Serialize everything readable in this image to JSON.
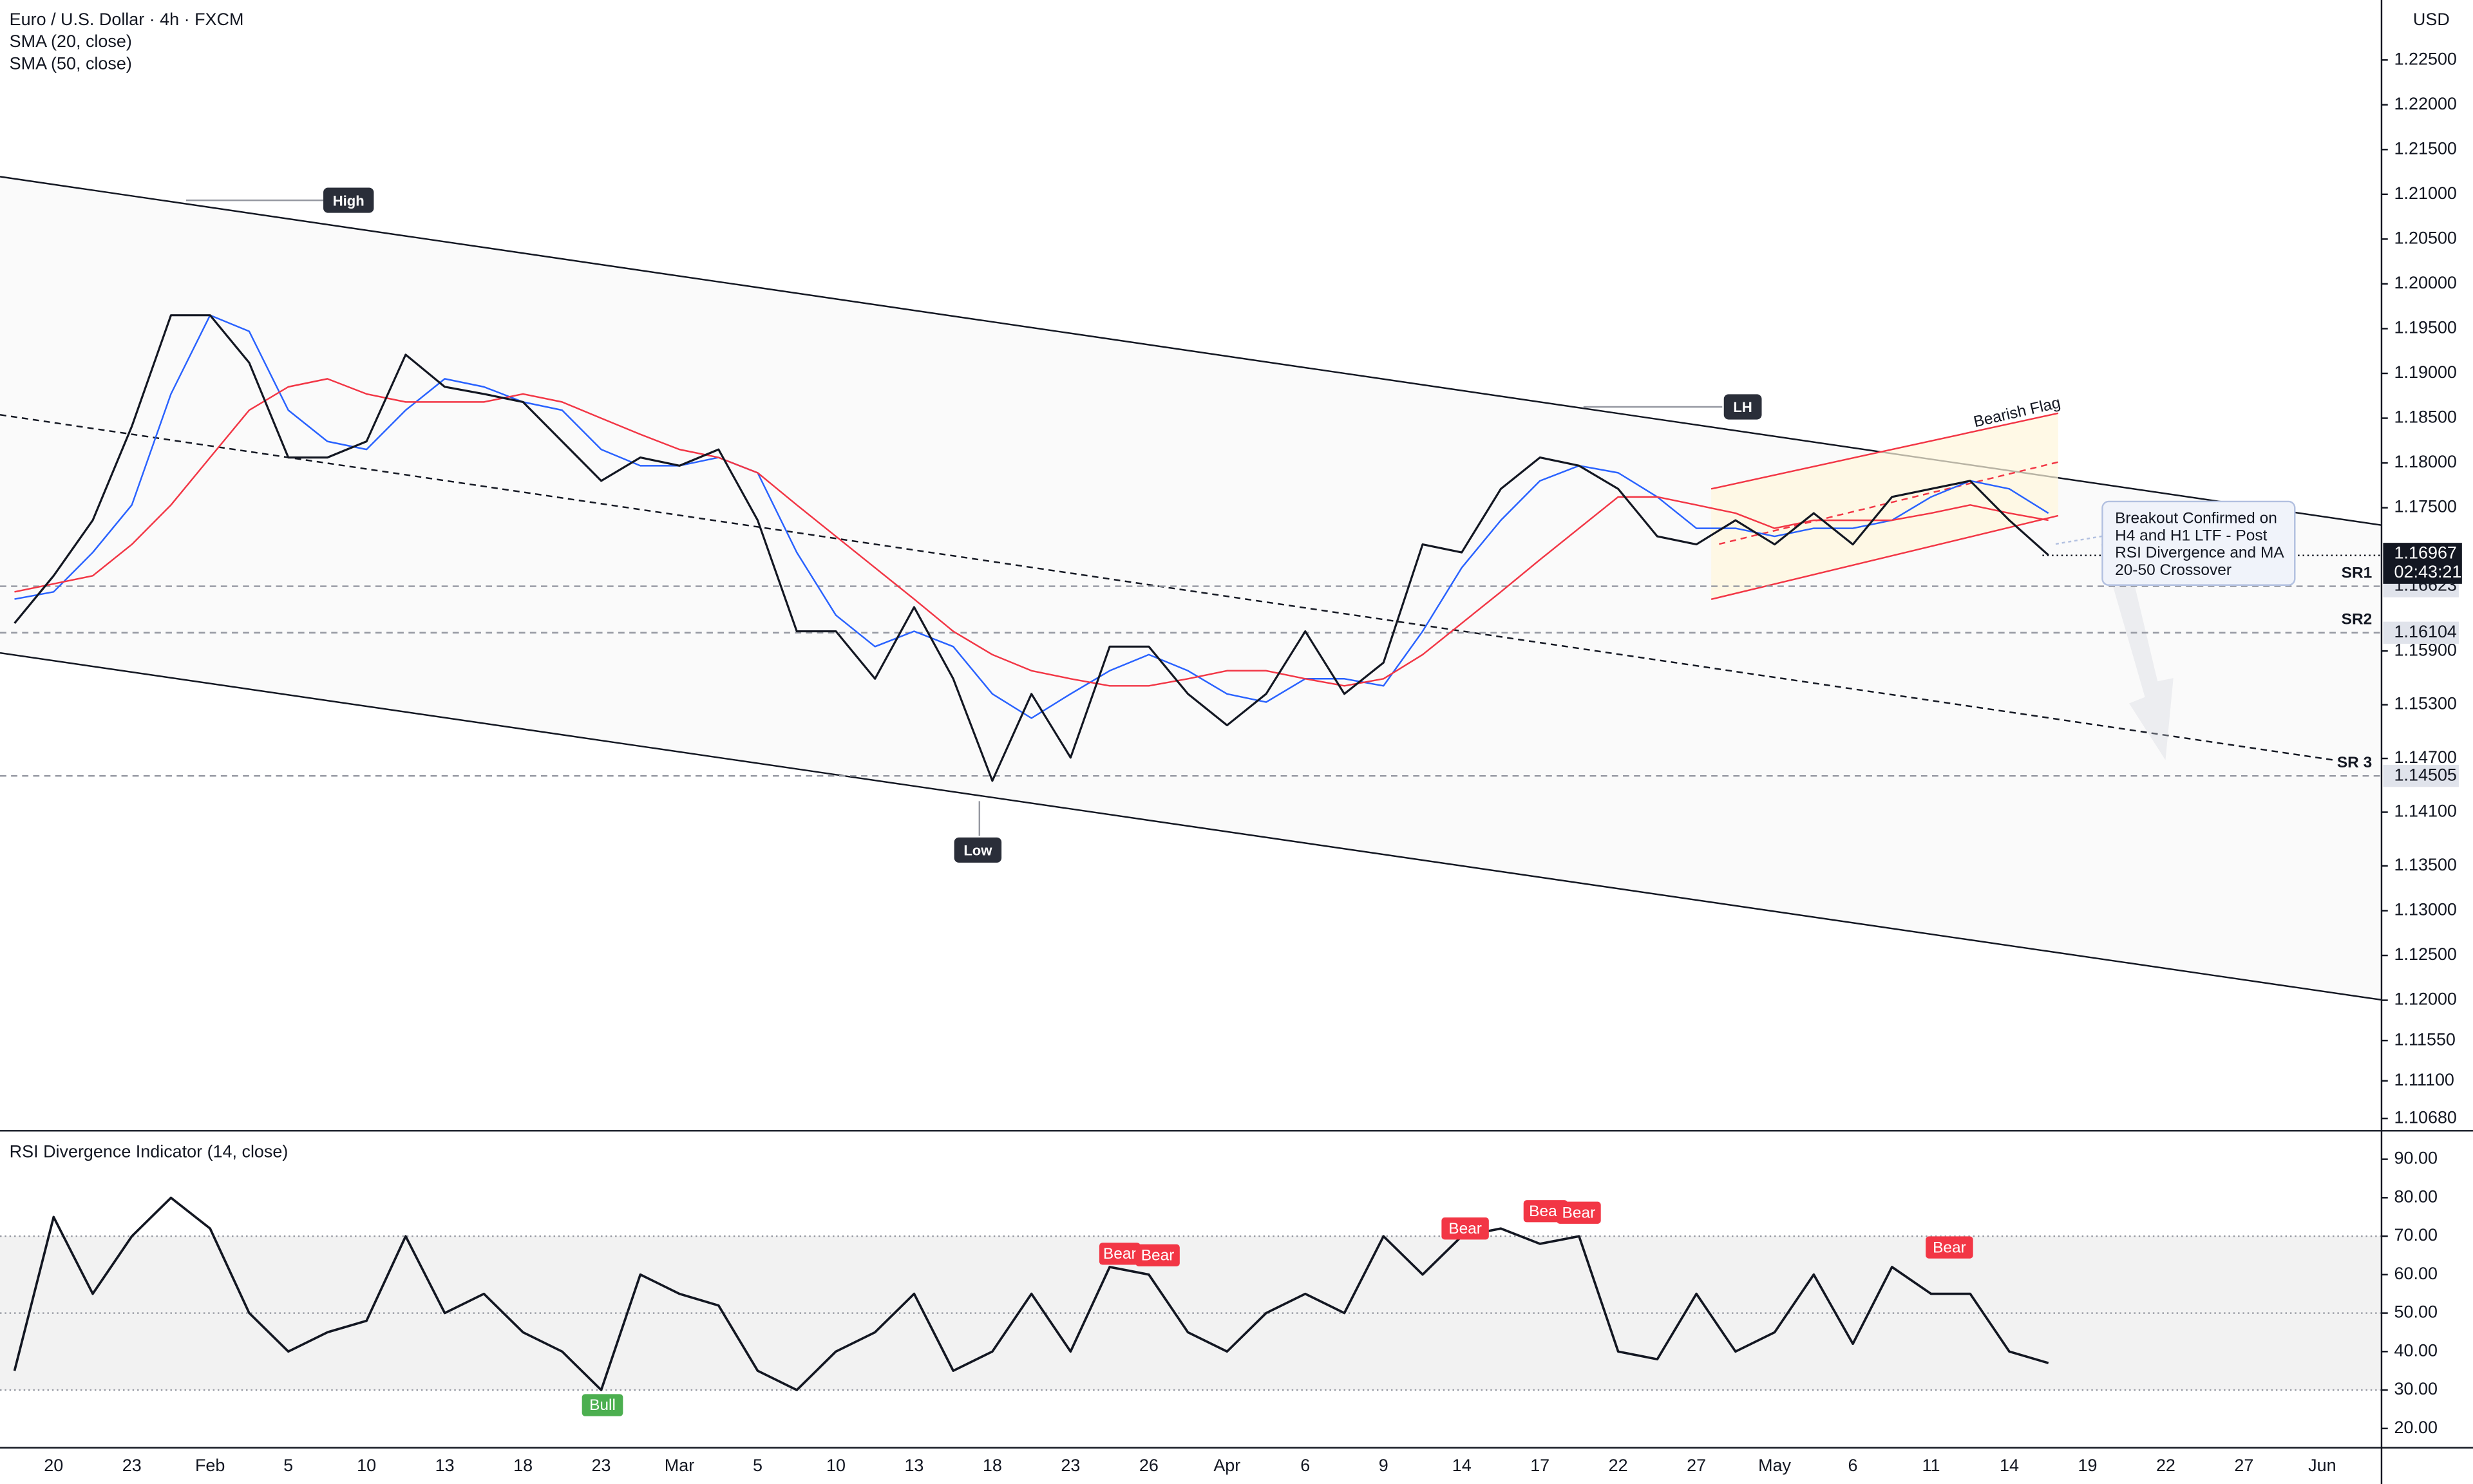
{
  "chart_data": {
    "type": "line",
    "currency": "USD",
    "categories": [
      null,
      "20",
      null,
      "23",
      null,
      "Feb",
      null,
      "5",
      null,
      "10",
      null,
      "13",
      null,
      "18",
      null,
      "23",
      null,
      "Mar",
      null,
      "5",
      null,
      "10",
      null,
      "13",
      null,
      "18",
      null,
      "23",
      null,
      "26",
      null,
      "Apr",
      null,
      "6",
      null,
      "9",
      null,
      "14",
      null,
      "17",
      null,
      "22",
      null,
      "27",
      null,
      "May",
      null,
      "6",
      null,
      "11",
      null,
      "14",
      null,
      "19",
      null,
      "22",
      null,
      "27",
      null,
      "Jun"
    ],
    "series": [
      {
        "name": "Euro / U.S. Dollar · 4h · FXCM",
        "color": "#131722",
        "values": [
          1.1621,
          1.1674,
          1.1736,
          1.1841,
          1.1965,
          1.1965,
          1.1912,
          1.1806,
          1.1806,
          1.1824,
          1.1921,
          1.1885,
          1.1877,
          1.1868,
          1.1824,
          1.178,
          1.1806,
          1.1797,
          1.1815,
          1.1736,
          1.1612,
          1.1612,
          1.1559,
          1.1639,
          1.1559,
          1.1445,
          1.1542,
          1.1471,
          1.1595,
          1.1595,
          1.1542,
          1.1507,
          1.1542,
          1.1612,
          1.1542,
          1.1577,
          1.1709,
          1.17,
          1.1771,
          1.1806,
          1.1797,
          1.1771,
          1.1718,
          1.1709,
          1.1736,
          1.1709,
          1.1744,
          1.1709,
          1.1762,
          1.1771,
          1.178,
          1.1736,
          1.1697,
          null,
          null,
          null,
          null,
          null,
          null,
          null
        ]
      },
      {
        "name": "SMA (20, close)",
        "color": "#2962ff",
        "values": [
          1.1648,
          1.1656,
          1.17,
          1.1753,
          1.1877,
          1.1965,
          1.1947,
          1.1859,
          1.1824,
          1.1815,
          1.1859,
          1.1894,
          1.1885,
          1.1868,
          1.1859,
          1.1815,
          1.1797,
          1.1797,
          1.1806,
          1.1789,
          1.17,
          1.163,
          1.1595,
          1.1612,
          1.1595,
          1.1542,
          1.1515,
          1.1542,
          1.1568,
          1.1586,
          1.1568,
          1.1542,
          1.1533,
          1.1559,
          1.1559,
          1.1551,
          1.1612,
          1.1683,
          1.1736,
          1.178,
          1.1797,
          1.1789,
          1.1762,
          1.1727,
          1.1727,
          1.1718,
          1.1727,
          1.1727,
          1.1736,
          1.1762,
          1.178,
          1.1771,
          1.1744,
          null,
          null,
          null,
          null,
          null,
          null,
          null
        ]
      },
      {
        "name": "SMA (50, close)",
        "color": "#f23645",
        "values": [
          1.1656,
          1.1665,
          1.1674,
          1.1709,
          1.1753,
          1.1806,
          1.1859,
          1.1885,
          1.1894,
          1.1877,
          1.1868,
          1.1868,
          1.1868,
          1.1877,
          1.1868,
          1.185,
          1.1832,
          1.1815,
          1.1806,
          1.1789,
          1.1753,
          1.1718,
          1.1683,
          1.1648,
          1.1612,
          1.1586,
          1.1568,
          1.1559,
          1.1551,
          1.1551,
          1.1559,
          1.1568,
          1.1568,
          1.1559,
          1.1551,
          1.1559,
          1.1586,
          1.1621,
          1.1656,
          1.1692,
          1.1727,
          1.1762,
          1.1762,
          1.1753,
          1.1744,
          1.1727,
          1.1736,
          1.1736,
          1.1736,
          1.1744,
          1.1753,
          1.1744,
          1.1736,
          null,
          null,
          null,
          null,
          null,
          null,
          null
        ]
      }
    ],
    "ylim": [
      1.1056,
      1.2317
    ],
    "yticks": [
      {
        "value": 1.225,
        "label": "1.22500"
      },
      {
        "value": 1.22,
        "label": "1.22000"
      },
      {
        "value": 1.215,
        "label": "1.21500"
      },
      {
        "value": 1.21,
        "label": "1.21000"
      },
      {
        "value": 1.205,
        "label": "1.20500"
      },
      {
        "value": 1.2,
        "label": "1.20000"
      },
      {
        "value": 1.195,
        "label": "1.19500"
      },
      {
        "value": 1.19,
        "label": "1.19000"
      },
      {
        "value": 1.185,
        "label": "1.18500"
      },
      {
        "value": 1.18,
        "label": "1.18000"
      },
      {
        "value": 1.175,
        "label": "1.17500"
      },
      {
        "value": 1.159,
        "label": "1.15900"
      },
      {
        "value": 1.153,
        "label": "1.15300"
      },
      {
        "value": 1.147,
        "label": "1.14700"
      },
      {
        "value": 1.141,
        "label": "1.14100"
      },
      {
        "value": 1.135,
        "label": "1.13500"
      },
      {
        "value": 1.13,
        "label": "1.13000"
      },
      {
        "value": 1.125,
        "label": "1.12500"
      },
      {
        "value": 1.12,
        "label": "1.12000"
      },
      {
        "value": 1.1155,
        "label": "1.11550"
      },
      {
        "value": 1.111,
        "label": "1.11100"
      },
      {
        "value": 1.1068,
        "label": "1.10680"
      }
    ],
    "last": {
      "value": 1.16967,
      "label": "1.16967",
      "countdown": "02:43:21"
    },
    "levels": [
      {
        "name": "SR1",
        "value": 1.16623,
        "label": "1.16623"
      },
      {
        "name": "SR2",
        "value": 1.16104,
        "label": "1.16104"
      },
      {
        "name": "SR 3",
        "value": 1.14505,
        "label": "1.14505"
      }
    ],
    "annotations": {
      "high": "High",
      "lh": "LH",
      "low": "Low",
      "flag": "Bearish Flag",
      "note": [
        "Breakout Confirmed on",
        "H4 and H1 LTF - Post",
        "RSI Divergence and MA",
        "20-50 Crossover"
      ]
    },
    "indicator": {
      "type": "line",
      "series": [
        {
          "name": "RSI Divergence Indicator (14, close)",
          "color": "#131722",
          "values": [
            35,
            75,
            55,
            70,
            80,
            72,
            50,
            40,
            45,
            48,
            70,
            50,
            55,
            45,
            40,
            30,
            60,
            55,
            52,
            35,
            30,
            40,
            45,
            55,
            35,
            40,
            55,
            40,
            62,
            60,
            45,
            40,
            50,
            55,
            50,
            70,
            60,
            70,
            72,
            68,
            70,
            40,
            38,
            55,
            40,
            45,
            60,
            42,
            62,
            55,
            55,
            40,
            37,
            null,
            null,
            null,
            null,
            null,
            null,
            null
          ]
        }
      ],
      "ylim": [
        15,
        97
      ],
      "yticks": [
        {
          "value": 90,
          "label": "90.00"
        },
        {
          "value": 80,
          "label": "80.00"
        },
        {
          "value": 70,
          "label": "70.00"
        },
        {
          "value": 60,
          "label": "60.00"
        },
        {
          "value": 50,
          "label": "50.00"
        },
        {
          "value": 40,
          "label": "40.00"
        },
        {
          "value": 30,
          "label": "30.00"
        },
        {
          "value": 20,
          "label": "20.00"
        }
      ],
      "band": [
        30,
        70
      ],
      "midline": 50,
      "signals": [
        "Bull",
        "Bear",
        "Bear",
        "Bear",
        "Bear",
        "Bear",
        "Bear"
      ]
    }
  }
}
